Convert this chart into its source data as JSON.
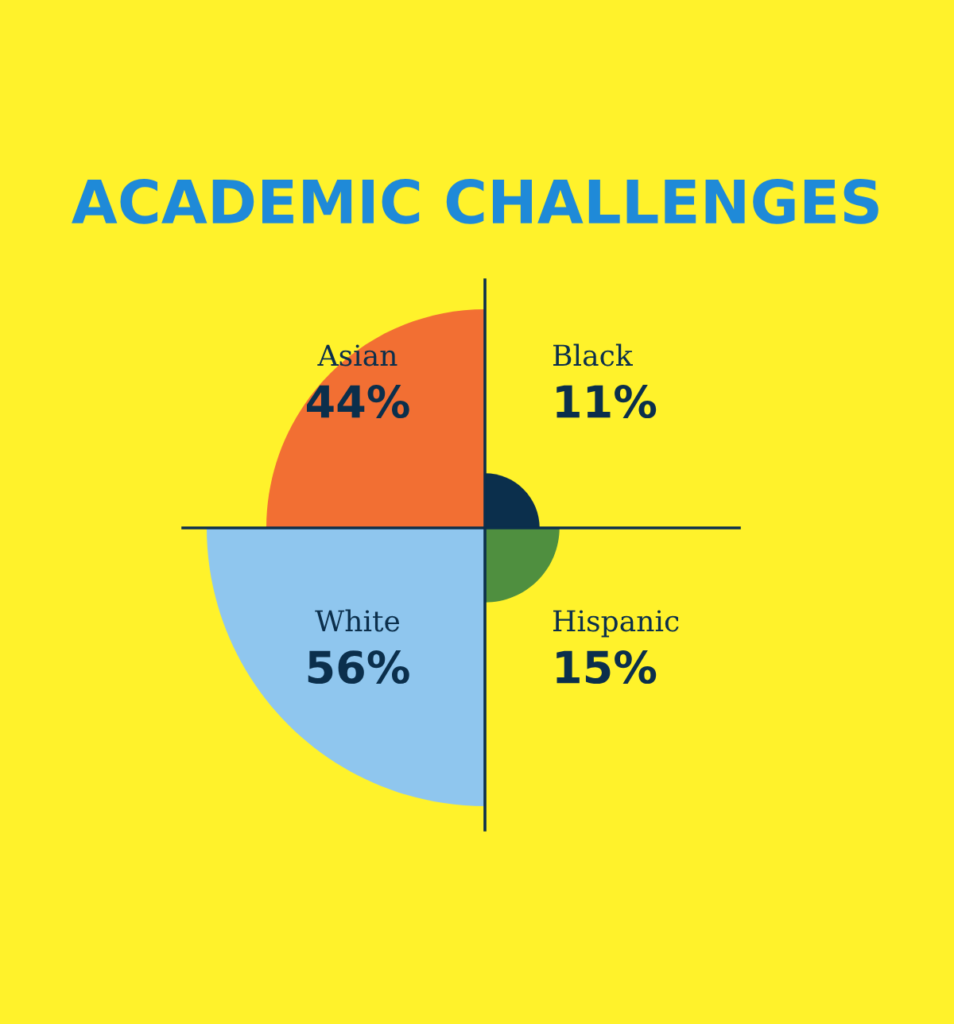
{
  "chart_data": {
    "type": "other",
    "title": "ACADEMIC CHALLENGES",
    "categories": [
      "Asian",
      "Black",
      "Hispanic",
      "White"
    ],
    "values": [
      44,
      11,
      15,
      56
    ],
    "value_labels": [
      "44%",
      "11%",
      "15%",
      "56%"
    ],
    "colors": [
      "#f26f33",
      "#0b2f4c",
      "#4f8f3f",
      "#8fc6ee"
    ]
  }
}
